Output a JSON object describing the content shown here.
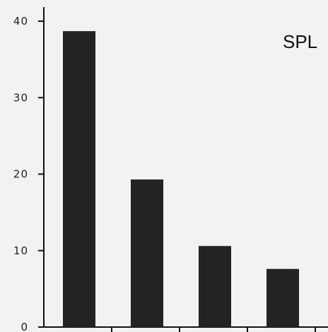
{
  "chart_data": {
    "type": "bar",
    "title": "SPL",
    "xlabel": "",
    "ylabel": "",
    "categories": [
      "",
      "",
      "",
      ""
    ],
    "values": [
      38.7,
      19.3,
      10.6,
      7.6
    ],
    "ylim": [
      0,
      42
    ],
    "yticks": [
      0,
      10,
      20,
      30,
      40
    ],
    "ytick_labels": [
      "0",
      "10",
      "20",
      "30",
      "40"
    ],
    "grid": false,
    "bar_color": "#232323"
  }
}
